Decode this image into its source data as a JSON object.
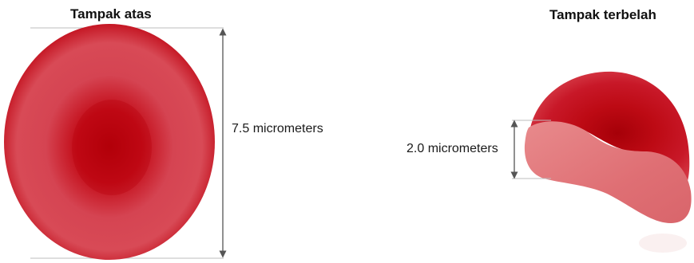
{
  "views": {
    "top": {
      "title": "Tampak atas",
      "dimension_label": "7.5 micrometers"
    },
    "cross_section": {
      "title": "Tampak terbelah",
      "dimension_label": "2.0 micrometers"
    }
  },
  "colors": {
    "cell_dark": "#b3000c",
    "cell_mid": "#d1283a",
    "cell_rim": "#d64550",
    "cut_face": "#e2787c",
    "guide_line": "#bdbdbd",
    "arrow": "#555555"
  }
}
